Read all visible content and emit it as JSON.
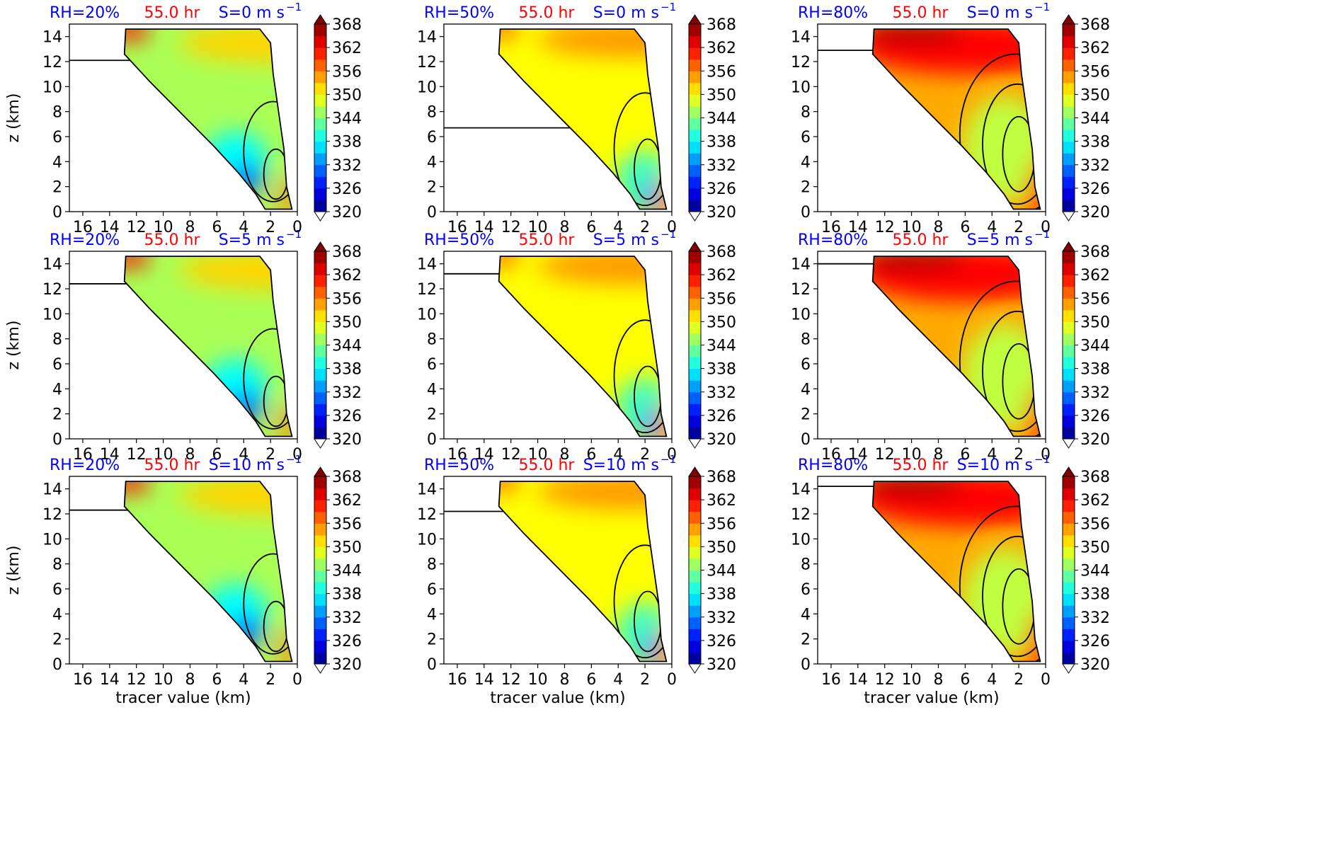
{
  "figure": {
    "xlabel": "tracer value (km)",
    "ylabel": "z (km)",
    "x_ticks": [
      16,
      14,
      12,
      10,
      8,
      6,
      4,
      2,
      0
    ],
    "y_ticks": [
      0,
      2,
      4,
      6,
      8,
      10,
      12,
      14
    ],
    "xlim": [
      17,
      0
    ],
    "ylim": [
      0,
      15
    ],
    "colorbar_ticks": [
      368,
      362,
      356,
      350,
      344,
      338,
      332,
      326,
      320
    ],
    "colorbar_range": [
      320,
      368
    ],
    "colormap": "jet",
    "colors": {
      "rh_label": "#0000ff",
      "time_label": "#ff0000",
      "shear_label": "#0000ff"
    }
  },
  "chart_data": [
    {
      "type": "heatmap",
      "rh": "RH=20%",
      "time": "55.0 hr",
      "shear": "S=0 m s",
      "shear_exp": "−1",
      "theme": "blue",
      "tropopause_z": 12.1
    },
    {
      "type": "heatmap",
      "rh": "RH=50%",
      "time": "55.0 hr",
      "shear": "S=0 m s",
      "shear_exp": "−1",
      "theme": "warm",
      "tropopause_z": 6.7
    },
    {
      "type": "heatmap",
      "rh": "RH=80%",
      "time": "55.0 hr",
      "shear": "S=0 m s",
      "shear_exp": "−1",
      "theme": "hot",
      "tropopause_z": 12.9
    },
    {
      "type": "heatmap",
      "rh": "RH=20%",
      "time": "55.0 hr",
      "shear": "S=5 m s",
      "shear_exp": "−1",
      "theme": "blue",
      "tropopause_z": 12.4
    },
    {
      "type": "heatmap",
      "rh": "RH=50%",
      "time": "55.0 hr",
      "shear": "S=5 m s",
      "shear_exp": "−1",
      "theme": "warm",
      "tropopause_z": 13.2
    },
    {
      "type": "heatmap",
      "rh": "RH=80%",
      "time": "55.0 hr",
      "shear": "S=5 m s",
      "shear_exp": "−1",
      "theme": "hot",
      "tropopause_z": 14.0
    },
    {
      "type": "heatmap",
      "rh": "RH=20%",
      "time": "55.0 hr",
      "shear": "S=10 m s",
      "shear_exp": "−1",
      "theme": "blue",
      "tropopause_z": 12.3
    },
    {
      "type": "heatmap",
      "rh": "RH=50%",
      "time": "55.0 hr",
      "shear": "S=10 m s",
      "shear_exp": "−1",
      "theme": "warm",
      "tropopause_z": 12.2
    },
    {
      "type": "heatmap",
      "rh": "RH=80%",
      "time": "55.0 hr",
      "shear": "S=10 m s",
      "shear_exp": "−1",
      "theme": "hot",
      "tropopause_z": 14.2
    }
  ]
}
